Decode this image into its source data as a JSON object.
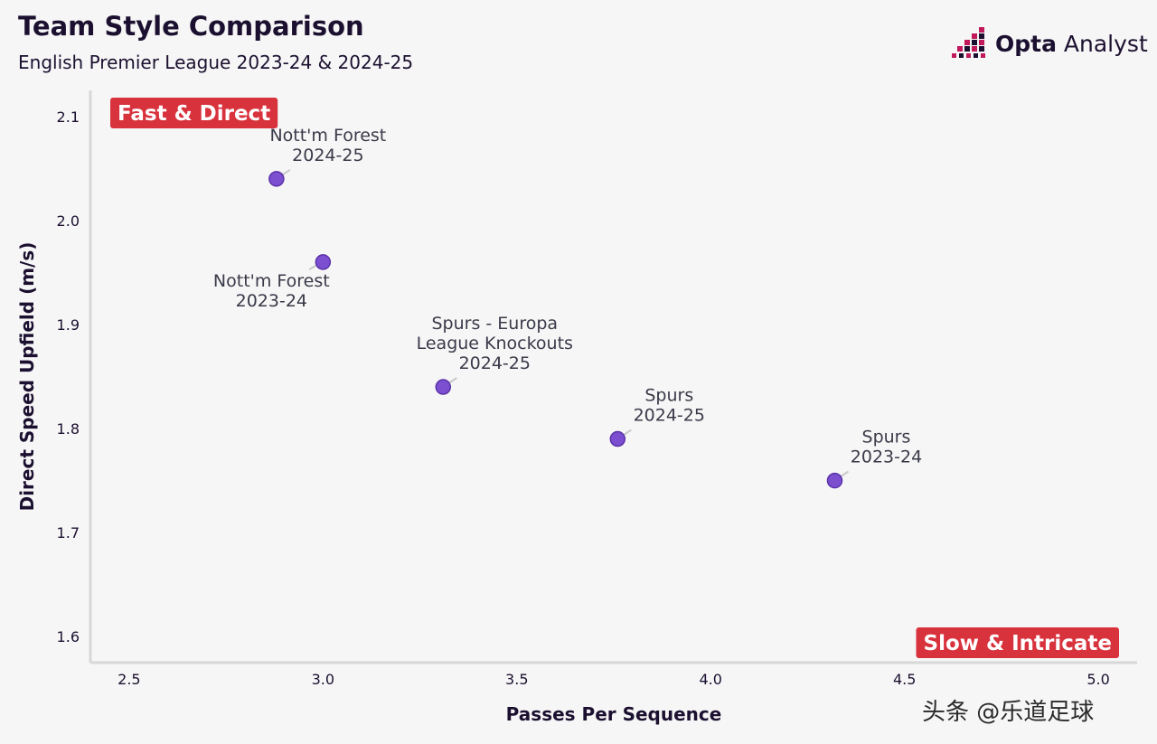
{
  "header": {
    "title": "Team Style Comparison",
    "subtitle": "English Premier League 2023-24 & 2024-25"
  },
  "logo": {
    "brand_strong": "Opta",
    "brand_light": " Analyst",
    "icon": "opta-pixel-icon"
  },
  "watermark": "头条 @乐道足球",
  "colors": {
    "point_fill": "#7b4fd0",
    "point_stroke": "#5a32a8",
    "quadrant_label_bg": "#d8323c",
    "axis": "#d8d8d8"
  },
  "chart_data": {
    "type": "scatter",
    "xlabel": "Passes Per Sequence",
    "ylabel": "Direct Speed Upfield (m/s)",
    "xlim": [
      2.4,
      5.1
    ],
    "ylim": [
      1.575,
      2.125
    ],
    "xticks": [
      "2.5",
      "3.0",
      "3.5",
      "4.0",
      "4.5",
      "5.0"
    ],
    "yticks": [
      "1.6",
      "1.7",
      "1.8",
      "1.9",
      "2.0",
      "2.1"
    ],
    "grid": false,
    "quadrant_labels": {
      "top_left": "Fast & Direct",
      "bottom_right": "Slow & Intricate"
    },
    "points": [
      {
        "x": 2.88,
        "y": 2.04,
        "label": [
          "Nott'm Forest",
          "2024-25"
        ],
        "label_position": "above-right"
      },
      {
        "x": 3.0,
        "y": 1.96,
        "label": [
          "Nott'm Forest",
          "2023-24"
        ],
        "label_position": "below-left"
      },
      {
        "x": 3.31,
        "y": 1.84,
        "label": [
          "Spurs - Europa",
          "League Knockouts",
          "2024-25"
        ],
        "label_position": "above-right"
      },
      {
        "x": 3.76,
        "y": 1.79,
        "label": [
          "Spurs",
          "2024-25"
        ],
        "label_position": "above-right"
      },
      {
        "x": 4.32,
        "y": 1.75,
        "label": [
          "Spurs",
          "2023-24"
        ],
        "label_position": "above-right"
      }
    ]
  }
}
